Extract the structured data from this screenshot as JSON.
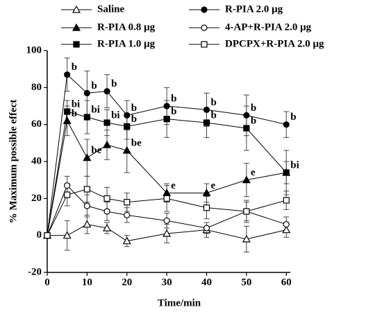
{
  "chart_data": {
    "type": "line",
    "x_label": "Time/min",
    "y_label": "% Maximum possible effect",
    "x": [
      0,
      5,
      10,
      15,
      20,
      30,
      40,
      50,
      60
    ],
    "xlim": [
      0,
      61
    ],
    "ylim": [
      -20,
      100
    ],
    "xticks": [
      0,
      10,
      20,
      30,
      40,
      50,
      60
    ],
    "yticks": [
      -20,
      0,
      20,
      40,
      60,
      80,
      100
    ],
    "series": [
      {
        "name": "Saline",
        "color": "#000000",
        "marker": "triangle-open",
        "values": [
          0,
          0,
          6,
          4,
          -3,
          1,
          3,
          -2,
          3
        ],
        "errors": [
          0,
          8,
          5,
          3,
          3,
          5,
          4,
          7,
          4
        ],
        "point_labels": [
          null,
          null,
          null,
          null,
          null,
          null,
          null,
          null,
          null
        ]
      },
      {
        "name": "R-PIA 0.8 μg",
        "color": "#000000",
        "marker": "triangle",
        "values": [
          0,
          62,
          42,
          49,
          46,
          23,
          23,
          30,
          34
        ],
        "errors": [
          0,
          8,
          10,
          8,
          12,
          5,
          5,
          9,
          6
        ],
        "point_labels": [
          null,
          "b",
          "be",
          null,
          "be",
          "e",
          "e",
          "e",
          null
        ]
      },
      {
        "name": "R-PIA 1.0 μg",
        "color": "#000000",
        "marker": "square",
        "values": [
          0,
          67,
          64,
          61,
          59,
          63,
          61,
          58,
          34
        ],
        "errors": [
          0,
          6,
          9,
          7,
          7,
          10,
          8,
          12,
          12
        ],
        "point_labels": [
          null,
          "bi",
          "bi",
          "bi",
          "b",
          "b",
          "b",
          "b",
          "bi"
        ]
      },
      {
        "name": "R-PIA 2.0 μg",
        "color": "#000000",
        "marker": "circle",
        "values": [
          0,
          87,
          77,
          78,
          65,
          70,
          68,
          65,
          60
        ],
        "errors": [
          0,
          9,
          12,
          9,
          8,
          10,
          9,
          11,
          7
        ],
        "point_labels": [
          null,
          "b",
          "b",
          "b",
          "b",
          "b",
          "b",
          "b",
          "b"
        ]
      },
      {
        "name": "4-AP+R-PIA 2.0 μg",
        "color": "#000000",
        "marker": "circle-open",
        "values": [
          0,
          27,
          16,
          13,
          11,
          8,
          4,
          13,
          6
        ],
        "errors": [
          0,
          5,
          6,
          5,
          4,
          4,
          3,
          5,
          4
        ],
        "point_labels": [
          null,
          null,
          null,
          null,
          null,
          null,
          null,
          null,
          null
        ]
      },
      {
        "name": "DPCPX+R-PIA 2.0 μg",
        "color": "#000000",
        "marker": "square-open",
        "values": [
          0,
          22,
          25,
          20,
          18,
          20,
          15,
          13,
          19
        ],
        "errors": [
          0,
          6,
          7,
          6,
          5,
          7,
          6,
          6,
          5
        ],
        "point_labels": [
          null,
          null,
          null,
          null,
          null,
          null,
          null,
          null,
          null
        ]
      }
    ]
  }
}
